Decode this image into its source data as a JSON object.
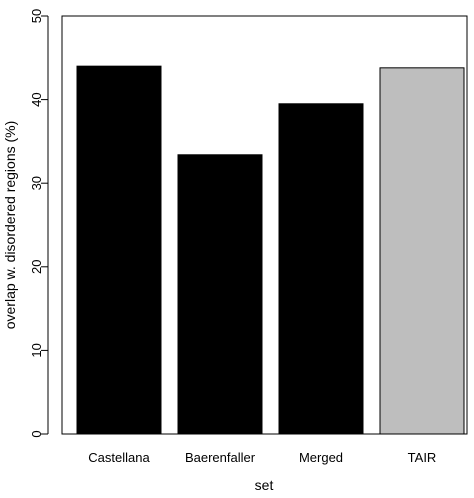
{
  "chart_data": {
    "type": "bar",
    "categories": [
      "Castellana",
      "Baerenfaller",
      "Merged",
      "TAIR"
    ],
    "values": [
      44.0,
      33.4,
      39.5,
      43.8
    ],
    "bar_colors": [
      "#000000",
      "#000000",
      "#000000",
      "#bebebe"
    ],
    "xlabel": "set",
    "ylabel": "overlap w. disordered regions (%)",
    "ylim": [
      0,
      50
    ],
    "yticks": [
      0,
      10,
      20,
      30,
      40,
      50
    ],
    "grid": false,
    "legend": "none"
  }
}
